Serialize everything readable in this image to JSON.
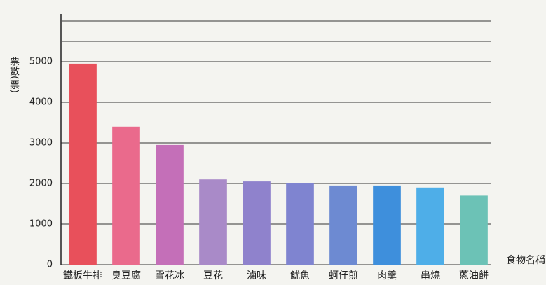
{
  "chart_data": {
    "type": "bar",
    "y_label": "票數(票)",
    "x_label": "食物名稱",
    "categories": [
      "鐵板牛排",
      "臭豆腐",
      "雪花冰",
      "豆花",
      "滷味",
      "魷魚",
      "蚵仔煎",
      "肉羹",
      "串燒",
      "蔥油餅"
    ],
    "values": [
      4950,
      3400,
      2950,
      2100,
      2050,
      2000,
      1950,
      1950,
      1900,
      1700
    ],
    "colors": [
      "#e8505b",
      "#ea6a8c",
      "#c46fb8",
      "#a98ac8",
      "#8f82cc",
      "#7f84d0",
      "#6d8ad2",
      "#3e8fdc",
      "#4eaee8",
      "#6cc2b6"
    ],
    "ylim": [
      0,
      5000
    ],
    "yticks": [
      0,
      1000,
      2000,
      3000,
      4000,
      5000
    ],
    "grid": true
  }
}
